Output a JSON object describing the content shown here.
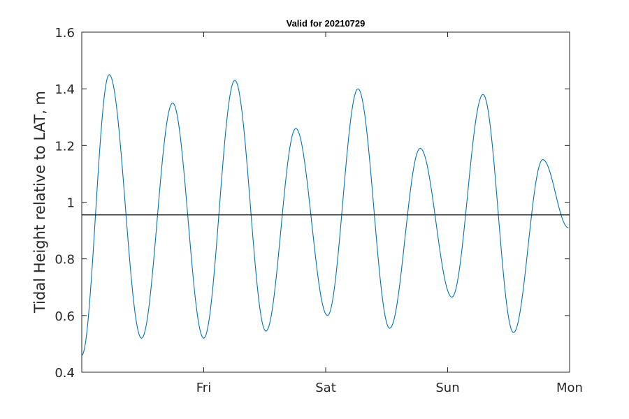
{
  "chart_data": {
    "type": "line",
    "title": "Valid for 20210729",
    "xlabel": "",
    "ylabel": "Tidal Height relative to LAT, m",
    "x_unit": "days since Thu 2021-07-29 00:00",
    "xlim": [
      0.0,
      4.0
    ],
    "ylim": [
      0.4,
      1.6
    ],
    "x_ticks": [
      {
        "value": 1.0,
        "label": "Fri"
      },
      {
        "value": 2.0,
        "label": "Sat"
      },
      {
        "value": 3.0,
        "label": "Sun"
      },
      {
        "value": 4.0,
        "label": "Mon"
      }
    ],
    "y_ticks": [
      {
        "value": 0.4,
        "label": "0.4"
      },
      {
        "value": 0.6,
        "label": "0.6"
      },
      {
        "value": 0.8,
        "label": "0.8"
      },
      {
        "value": 1.0,
        "label": "1"
      },
      {
        "value": 1.2,
        "label": "1.2"
      },
      {
        "value": 1.4,
        "label": "1.4"
      },
      {
        "value": 1.6,
        "label": "1.6"
      }
    ],
    "grid": false,
    "series": [
      {
        "color": "#0072bd",
        "points": [
          [
            0.0,
            0.46
          ],
          [
            0.225,
            1.45
          ],
          [
            0.49,
            0.52
          ],
          [
            0.745,
            1.35
          ],
          [
            1.0,
            0.52
          ],
          [
            1.255,
            1.43
          ],
          [
            1.51,
            0.545
          ],
          [
            1.755,
            1.26
          ],
          [
            2.015,
            0.6
          ],
          [
            2.265,
            1.4
          ],
          [
            2.525,
            0.555
          ],
          [
            2.775,
            1.19
          ],
          [
            3.035,
            0.665
          ],
          [
            3.29,
            1.38
          ],
          [
            3.54,
            0.54
          ],
          [
            3.78,
            1.15
          ],
          [
            3.99,
            0.91
          ]
        ]
      },
      {
        "color": "#000000",
        "reference_line": true,
        "y": 0.955
      }
    ]
  }
}
